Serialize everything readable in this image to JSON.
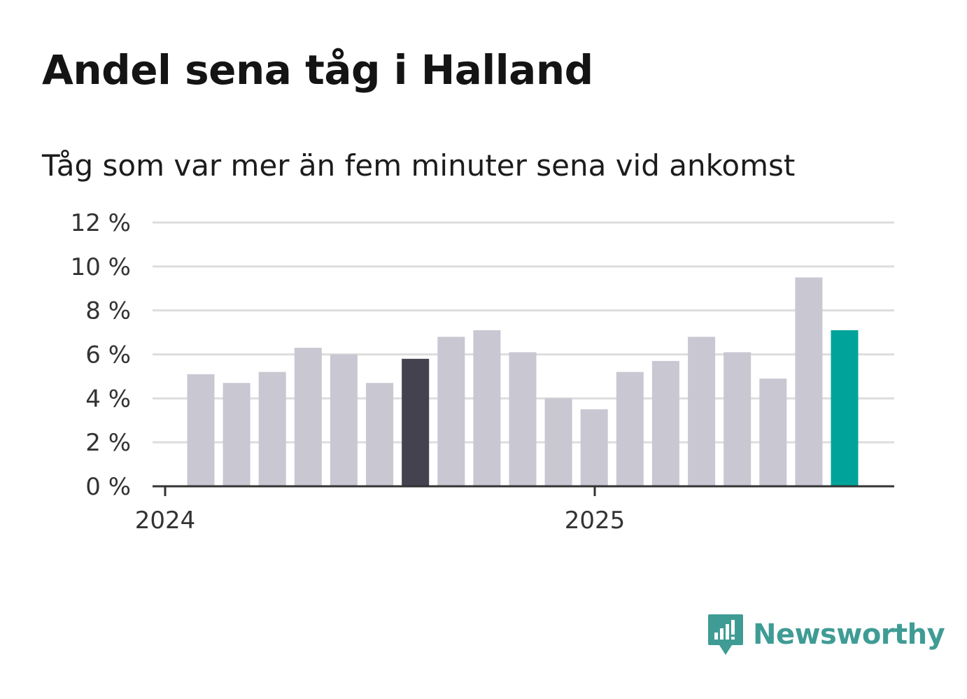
{
  "title": "Andel sena tåg i Halland",
  "subtitle": "Tåg som var mer än fem minuter sena vid ankomst",
  "brand": {
    "name": "Newsworthy",
    "color": "#3f9c95"
  },
  "colors": {
    "bar": "#c8c7d2",
    "highlight_dark": "#43424e",
    "highlight_accent": "#00a39a",
    "grid": "#dddddd",
    "axis": "#333333"
  },
  "chart_data": {
    "type": "bar",
    "title": "Andel sena tåg i Halland",
    "subtitle": "Tåg som var mer än fem minuter sena vid ankomst",
    "x_tick_labels": [
      "2024",
      "2025"
    ],
    "y_tick_labels": [
      "0 %",
      "2 %",
      "4 %",
      "6 %",
      "8 %",
      "10 %",
      "12 %"
    ],
    "ylim": [
      0,
      12
    ],
    "grid": true,
    "values": [
      5.1,
      4.7,
      5.2,
      6.3,
      6.0,
      4.7,
      5.8,
      6.8,
      7.1,
      6.1,
      4.0,
      3.5,
      5.2,
      5.7,
      6.8,
      6.1,
      4.9,
      9.5,
      7.1
    ],
    "highlight": {
      "6": "highlight_dark",
      "18": "highlight_accent"
    }
  }
}
